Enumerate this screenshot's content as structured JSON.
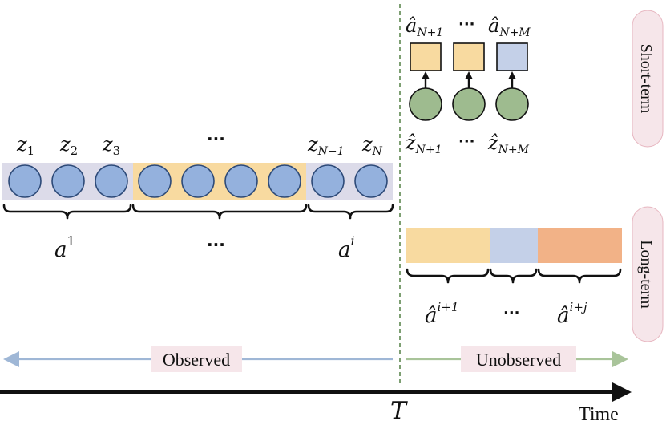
{
  "colors": {
    "latent_blue": "#94b1dd",
    "latent_green": "#9ebb8f",
    "action_yellow": "#f8daa0",
    "action_blue": "#c4d0e8",
    "action_orange": "#f2b287",
    "observed_band": "#dcdbe9",
    "observed_arrow": "#9fb7d6",
    "unobserved_arrow": "#a9c49a",
    "label_pill": "#f6e6ea",
    "label_pill_border": "#e7b6c0",
    "divider": "#7d9f72"
  },
  "observed": {
    "latent_labels": {
      "z1": "z",
      "z1_sub": "1",
      "z2": "z",
      "z2_sub": "2",
      "z3": "z",
      "z3_sub": "3",
      "ellipsis": "···",
      "zN1": "z",
      "zN1_sub": "N−1",
      "zN": "z",
      "zN_sub": "N"
    },
    "actions": {
      "a1": "a",
      "a1_sup": "1",
      "ellipsis": "···",
      "ai": "a",
      "ai_sup": "i"
    },
    "arrow_label": "Observed"
  },
  "short_term": {
    "label": "Short-term",
    "action_labels": {
      "first": "â",
      "first_sub": "N+1",
      "ellipsis": "···",
      "last": "â",
      "last_sub": "N+M"
    },
    "latent_labels": {
      "first": "ẑ",
      "first_sub": "N+1",
      "ellipsis": "···",
      "last": "ẑ",
      "last_sub": "N+M"
    }
  },
  "long_term": {
    "label": "Long-term",
    "actions": {
      "first": "â",
      "first_sup": "i+1",
      "ellipsis": "···",
      "last": "â",
      "last_sup": "i+j"
    }
  },
  "unobserved_label": "Unobserved",
  "time_axis": {
    "T": "T",
    "label": "Time"
  }
}
